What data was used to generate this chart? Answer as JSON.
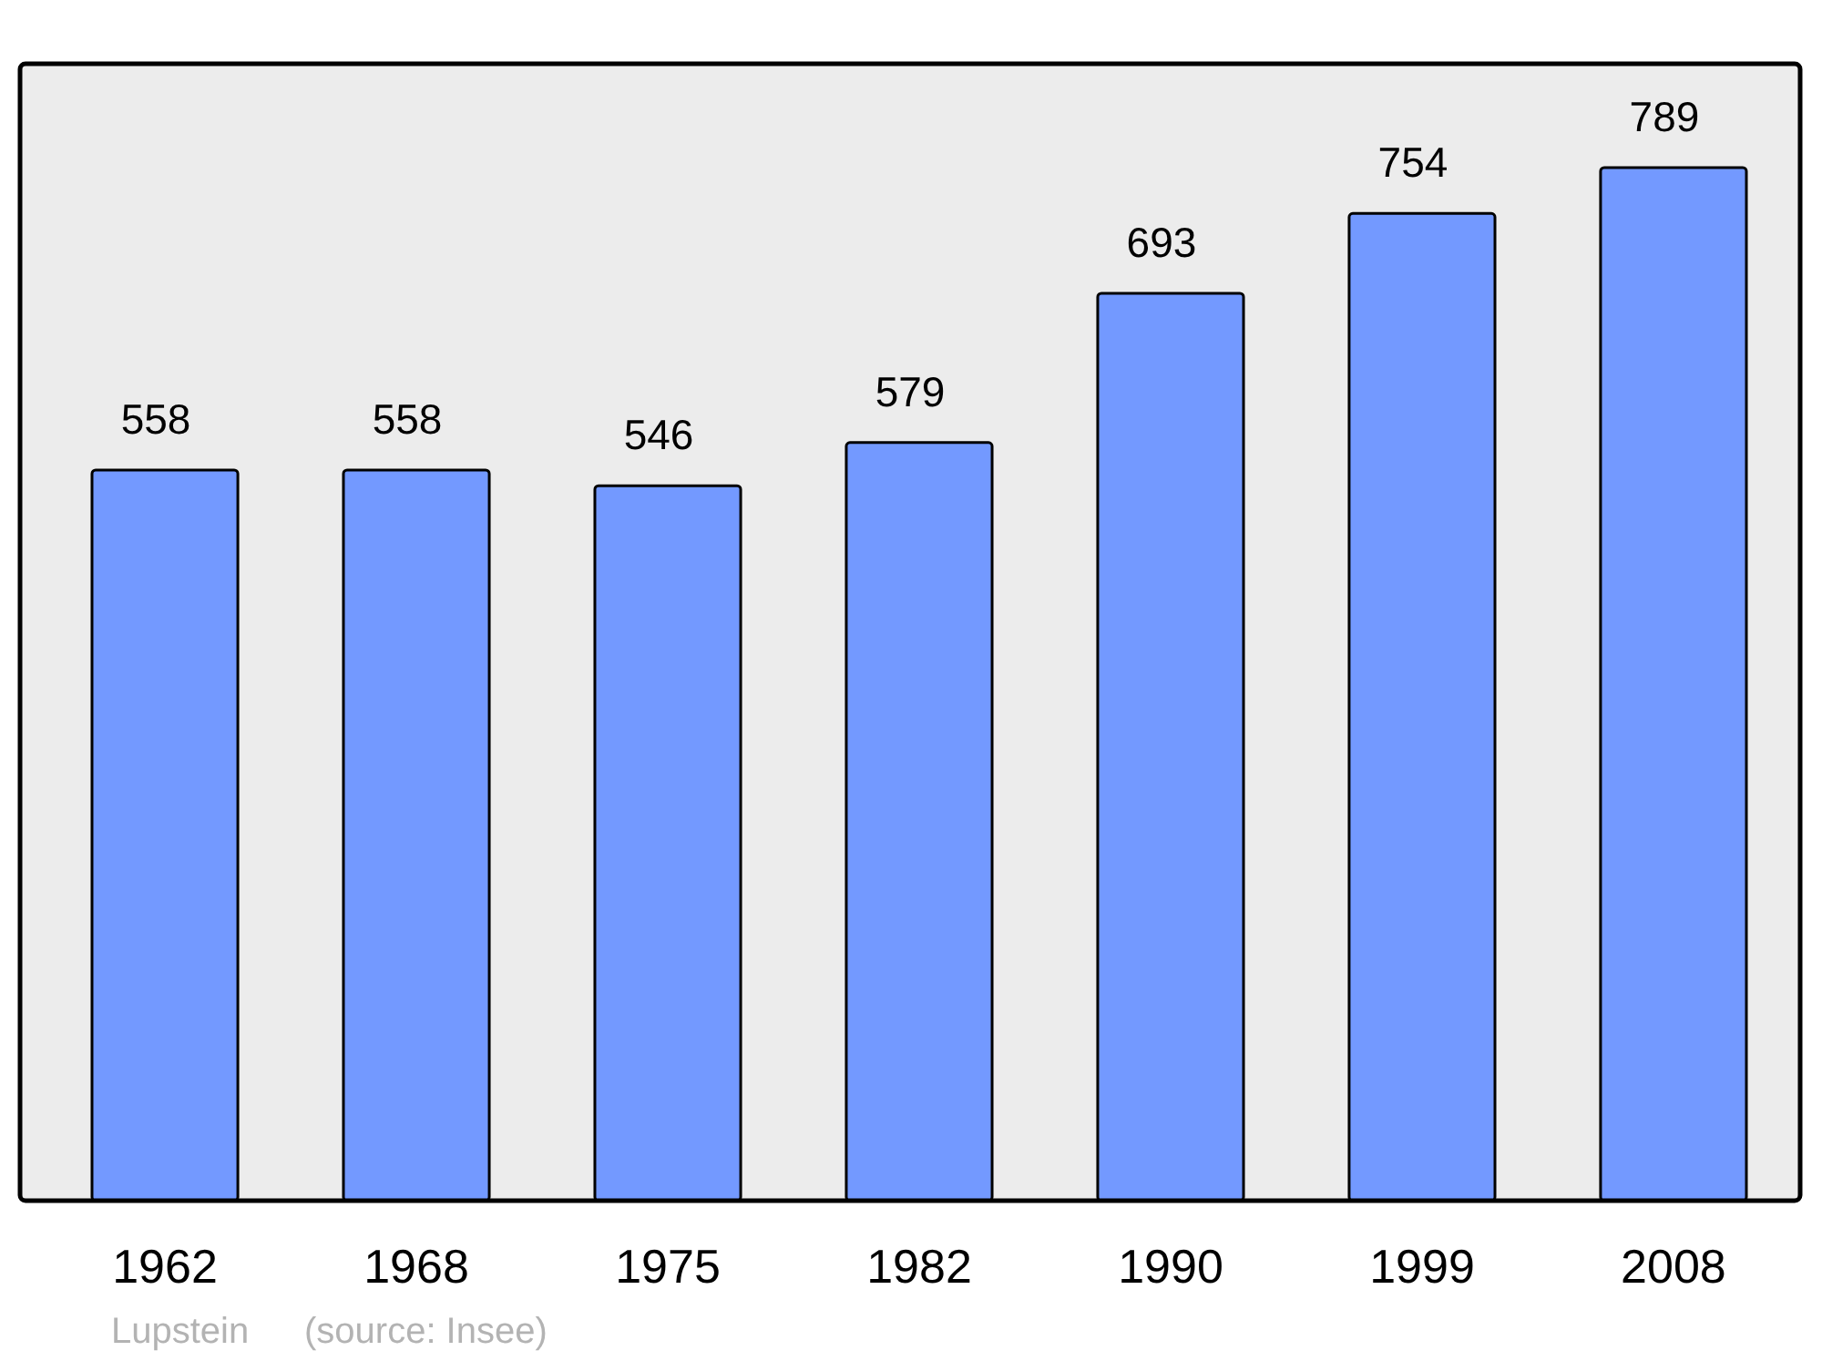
{
  "chart_data": {
    "type": "bar",
    "categories": [
      "1962",
      "1968",
      "1975",
      "1982",
      "1990",
      "1999",
      "2008"
    ],
    "values": [
      558,
      558,
      546,
      579,
      693,
      754,
      789
    ],
    "color": "#7399ff",
    "data_labels": true,
    "annotations": [
      "Lupstein",
      "(source: Insee)"
    ]
  }
}
